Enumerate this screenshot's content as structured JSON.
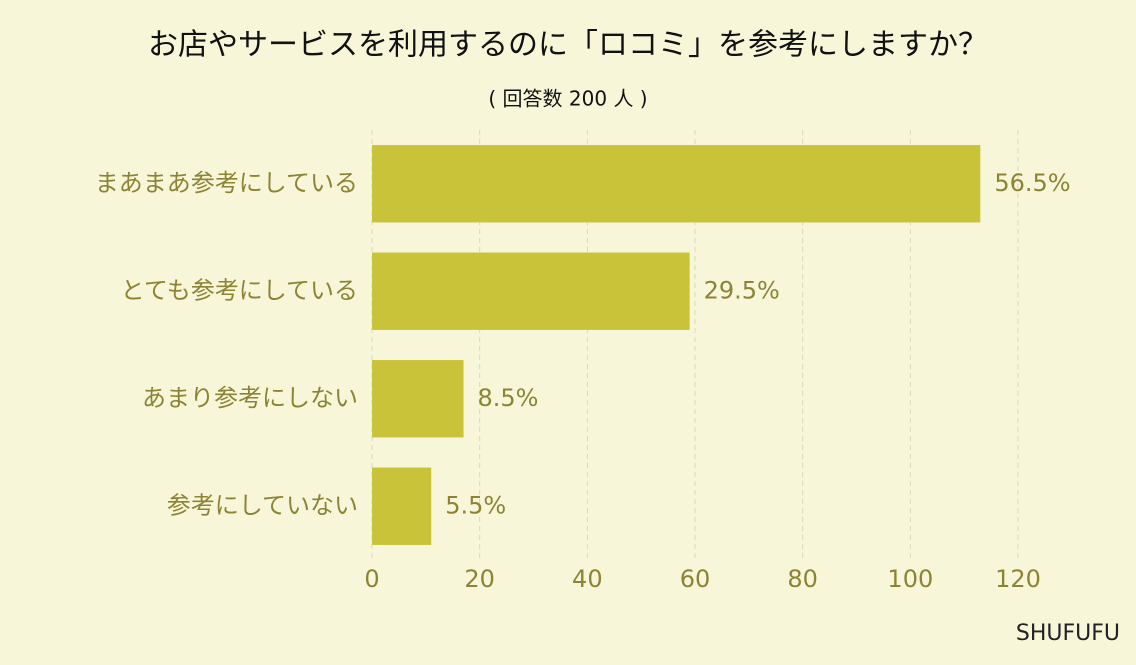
{
  "chart_data": {
    "type": "bar",
    "orientation": "horizontal",
    "title": "お店やサービスを利用するのに「ロコミ」を参考にしますか？",
    "subtitle": "( 回答数 200 人 )",
    "categories": [
      "まあまあ参考にしている",
      "とても参考にしている",
      "あまり参考にしない",
      "参考にしていない"
    ],
    "values": [
      113,
      59,
      17,
      11
    ],
    "value_labels": [
      "56.5%",
      "29.5%",
      "8.5%",
      "5.5%"
    ],
    "color": "#c9c33a",
    "xlim": [
      0,
      120
    ],
    "xticks": [
      0,
      20,
      40,
      60,
      80,
      100,
      120
    ],
    "grid": true,
    "source": "SHUFUFU"
  }
}
